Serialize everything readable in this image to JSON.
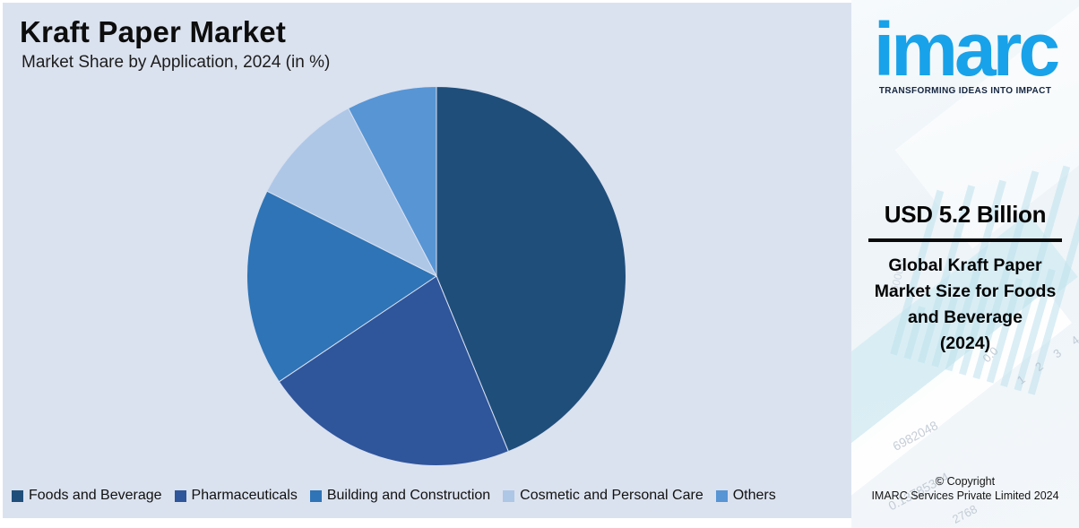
{
  "header": {
    "title": "Kraft Paper Market",
    "subtitle": "Market Share by Application, 2024 (in %)"
  },
  "chart_data": {
    "type": "pie",
    "title": "Kraft Paper Market",
    "subtitle": "Market Share by Application, 2024 (in %)",
    "unit": "%",
    "labels": [
      "Foods and Beverage",
      "Pharmaceuticals",
      "Building and Construction",
      "Cosmetic and Personal Care",
      "Others"
    ],
    "values": [
      43.8,
      21.8,
      16.8,
      9.9,
      7.7
    ],
    "colors": [
      "#1f4e7b",
      "#2f559b",
      "#2e74b6",
      "#aec7e7",
      "#5795d5"
    ],
    "start_angle_deg": 0,
    "direction": "clockwise",
    "legend_position": "bottom",
    "data_labels": false,
    "background_color": "#dbe2ef",
    "slice_separator_color": "#d7dfee"
  },
  "sidebar": {
    "logo_text": "imarc",
    "logo_tagline": "TRANSFORMING IDEAS INTO IMPACT",
    "brand_color": "#18a2e9",
    "stat_value": "USD 5.2 Billion",
    "stat_description": "Global Kraft Paper Market Size for Foods and Beverage",
    "stat_period": "(2024)",
    "copyright_line1": "© Copyright",
    "copyright_line2": "IMARC Services Private Limited 2024",
    "watermarks": {
      "w1": "0.0",
      "w2": "1 2 3 4",
      "w3": "6982048",
      "w4": "0.13785314",
      "w5": "2768",
      "w6": "5000.0"
    }
  }
}
